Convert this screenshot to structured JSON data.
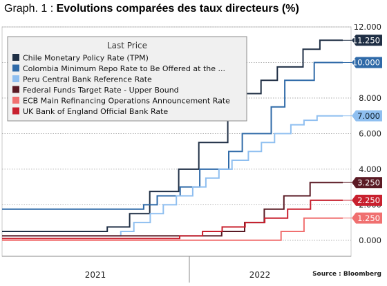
{
  "header": {
    "prefix": "Graph. 1 : ",
    "title": "Evolutions comparées des taux directeurs (%)"
  },
  "chart_data": {
    "type": "line",
    "legend_title": "Last Price",
    "legend_position": "top-left",
    "source": "Source : Bloomberg",
    "x_labels": [
      "2021",
      "2022"
    ],
    "x_range": [
      "2020-12-01",
      "2022-11-30"
    ],
    "ylim": [
      -0.9,
      12.0
    ],
    "y_ticks": [
      0,
      2,
      4,
      6,
      8,
      10,
      12
    ],
    "y_tick_labels": [
      "0.000",
      "2.000",
      "4.000",
      "6.000",
      "8.000",
      "10.000",
      "12.000"
    ],
    "grid": "dotted horizontal",
    "series": [
      {
        "name": "Chile Monetary Policy Rate (TPM)",
        "color": "#1f2f45",
        "last_label": "11.250",
        "points": [
          [
            "2020-12-01",
            0.5
          ],
          [
            "2021-07-14",
            0.5
          ],
          [
            "2021-07-14",
            0.75
          ],
          [
            "2021-08-31",
            0.75
          ],
          [
            "2021-08-31",
            1.5
          ],
          [
            "2021-10-13",
            1.5
          ],
          [
            "2021-10-13",
            2.75
          ],
          [
            "2021-12-14",
            2.75
          ],
          [
            "2021-12-14",
            4.0
          ],
          [
            "2022-01-26",
            4.0
          ],
          [
            "2022-01-26",
            5.5
          ],
          [
            "2022-03-29",
            5.5
          ],
          [
            "2022-03-29",
            7.0
          ],
          [
            "2022-05-05",
            7.0
          ],
          [
            "2022-05-05",
            8.25
          ],
          [
            "2022-06-08",
            8.25
          ],
          [
            "2022-06-08",
            9.0
          ],
          [
            "2022-07-13",
            9.0
          ],
          [
            "2022-07-13",
            9.75
          ],
          [
            "2022-09-06",
            9.75
          ],
          [
            "2022-09-06",
            10.75
          ],
          [
            "2022-10-12",
            10.75
          ],
          [
            "2022-10-12",
            11.25
          ],
          [
            "2022-11-30",
            11.25
          ]
        ]
      },
      {
        "name": "Colombia Minimum Repo Rate to Be Offered at the ...",
        "color": "#2f6aa8",
        "last_label": "10.000",
        "points": [
          [
            "2020-12-01",
            1.75
          ],
          [
            "2021-09-30",
            1.75
          ],
          [
            "2021-09-30",
            2.0
          ],
          [
            "2021-10-29",
            2.0
          ],
          [
            "2021-10-29",
            2.5
          ],
          [
            "2021-12-17",
            2.5
          ],
          [
            "2021-12-17",
            3.0
          ],
          [
            "2022-01-28",
            3.0
          ],
          [
            "2022-01-28",
            4.0
          ],
          [
            "2022-03-31",
            4.0
          ],
          [
            "2022-03-31",
            5.0
          ],
          [
            "2022-04-29",
            5.0
          ],
          [
            "2022-04-29",
            6.0
          ],
          [
            "2022-06-30",
            6.0
          ],
          [
            "2022-06-30",
            7.5
          ],
          [
            "2022-07-29",
            7.5
          ],
          [
            "2022-07-29",
            9.0
          ],
          [
            "2022-09-30",
            9.0
          ],
          [
            "2022-09-30",
            10.0
          ],
          [
            "2022-11-30",
            10.0
          ]
        ]
      },
      {
        "name": "Peru Central Bank Reference Rate",
        "color": "#8fbff0",
        "last_label": "7.000",
        "points": [
          [
            "2020-12-01",
            0.25
          ],
          [
            "2021-08-12",
            0.25
          ],
          [
            "2021-08-12",
            0.5
          ],
          [
            "2021-09-09",
            0.5
          ],
          [
            "2021-09-09",
            1.0
          ],
          [
            "2021-10-14",
            1.0
          ],
          [
            "2021-10-14",
            1.5
          ],
          [
            "2021-11-11",
            1.5
          ],
          [
            "2021-11-11",
            2.0
          ],
          [
            "2021-12-09",
            2.0
          ],
          [
            "2021-12-09",
            2.5
          ],
          [
            "2022-01-13",
            2.5
          ],
          [
            "2022-01-13",
            3.0
          ],
          [
            "2022-02-10",
            3.0
          ],
          [
            "2022-02-10",
            3.5
          ],
          [
            "2022-03-10",
            3.5
          ],
          [
            "2022-03-10",
            4.0
          ],
          [
            "2022-04-07",
            4.0
          ],
          [
            "2022-04-07",
            4.5
          ],
          [
            "2022-05-12",
            4.5
          ],
          [
            "2022-05-12",
            5.0
          ],
          [
            "2022-06-09",
            5.0
          ],
          [
            "2022-06-09",
            5.5
          ],
          [
            "2022-07-07",
            5.5
          ],
          [
            "2022-07-07",
            6.0
          ],
          [
            "2022-08-11",
            6.0
          ],
          [
            "2022-08-11",
            6.5
          ],
          [
            "2022-09-08",
            6.5
          ],
          [
            "2022-09-08",
            6.75
          ],
          [
            "2022-10-06",
            6.75
          ],
          [
            "2022-10-06",
            7.0
          ],
          [
            "2022-11-30",
            7.0
          ]
        ]
      },
      {
        "name": "Federal Funds Target Rate - Upper Bound",
        "color": "#5a1a24",
        "last_label": "3.250",
        "points": [
          [
            "2020-12-01",
            0.25
          ],
          [
            "2022-03-16",
            0.25
          ],
          [
            "2022-03-16",
            0.5
          ],
          [
            "2022-05-04",
            0.5
          ],
          [
            "2022-05-04",
            1.0
          ],
          [
            "2022-06-15",
            1.0
          ],
          [
            "2022-06-15",
            1.75
          ],
          [
            "2022-07-27",
            1.75
          ],
          [
            "2022-07-27",
            2.5
          ],
          [
            "2022-09-21",
            2.5
          ],
          [
            "2022-09-21",
            3.25
          ],
          [
            "2022-11-30",
            3.25
          ]
        ]
      },
      {
        "name": "ECB Main Refinancing Operations Announcement Rate",
        "color": "#f07070",
        "last_label": "1.250",
        "points": [
          [
            "2020-12-01",
            0.0
          ],
          [
            "2022-07-21",
            0.0
          ],
          [
            "2022-07-21",
            0.5
          ],
          [
            "2022-09-08",
            0.5
          ],
          [
            "2022-09-08",
            1.25
          ],
          [
            "2022-11-30",
            1.25
          ]
        ]
      },
      {
        "name": "UK Bank of England Official Bank Rate",
        "color": "#c8202e",
        "last_label": "2.250",
        "points": [
          [
            "2020-12-01",
            0.1
          ],
          [
            "2021-12-16",
            0.1
          ],
          [
            "2021-12-16",
            0.25
          ],
          [
            "2022-02-03",
            0.25
          ],
          [
            "2022-02-03",
            0.5
          ],
          [
            "2022-03-17",
            0.5
          ],
          [
            "2022-03-17",
            0.75
          ],
          [
            "2022-05-05",
            0.75
          ],
          [
            "2022-05-05",
            1.0
          ],
          [
            "2022-06-16",
            1.0
          ],
          [
            "2022-06-16",
            1.25
          ],
          [
            "2022-08-04",
            1.25
          ],
          [
            "2022-08-04",
            1.75
          ],
          [
            "2022-09-22",
            1.75
          ],
          [
            "2022-09-22",
            2.25
          ],
          [
            "2022-11-30",
            2.25
          ]
        ]
      }
    ]
  }
}
